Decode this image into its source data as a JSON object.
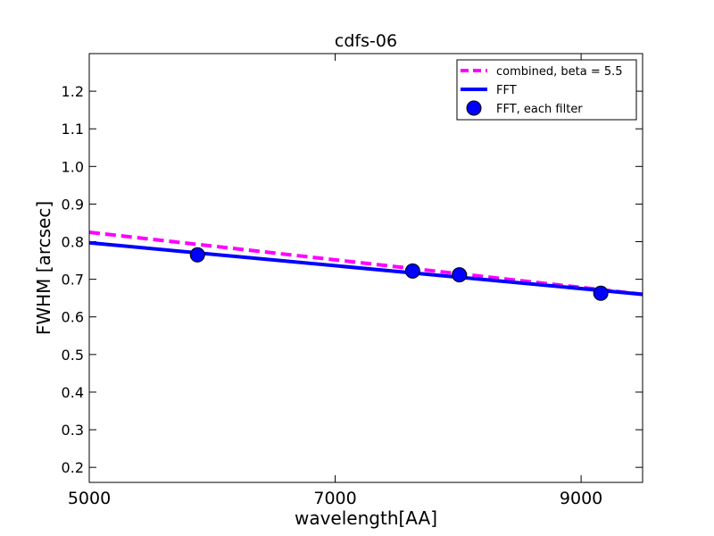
{
  "chart_data": {
    "type": "line",
    "title": "cdfs-06",
    "xlabel": "wavelength[AA]",
    "ylabel": "FWHM [arcsec]",
    "xlim": [
      5000,
      9500
    ],
    "ylim": [
      0.16,
      1.3
    ],
    "xticks": [
      5000,
      7000,
      9000
    ],
    "yticks": [
      0.2,
      0.3,
      0.4,
      0.5,
      0.6,
      0.7,
      0.8,
      0.9,
      1.0,
      1.1,
      1.2
    ],
    "ytick_labels": [
      "0.2",
      "0.3",
      "0.4",
      "0.5",
      "0.6",
      "0.7",
      "0.8",
      "0.9",
      "1.0",
      "1.1",
      "1.2"
    ],
    "grid": false,
    "legend_position": "top-right",
    "series": [
      {
        "name": "combined, beta = 5.5",
        "kind": "line",
        "style": "dashed",
        "color": "#ff00ff",
        "x": [
          5000,
          9500
        ],
        "y": [
          0.825,
          0.66
        ]
      },
      {
        "name": "FFT",
        "kind": "line",
        "style": "solid",
        "color": "#0000ff",
        "x": [
          5000,
          9500
        ],
        "y": [
          0.797,
          0.66
        ]
      },
      {
        "name": "FFT, each filter",
        "kind": "scatter",
        "color": "#0000ff",
        "x": [
          5880,
          7630,
          8010,
          9160
        ],
        "y": [
          0.765,
          0.722,
          0.712,
          0.663
        ]
      }
    ]
  }
}
